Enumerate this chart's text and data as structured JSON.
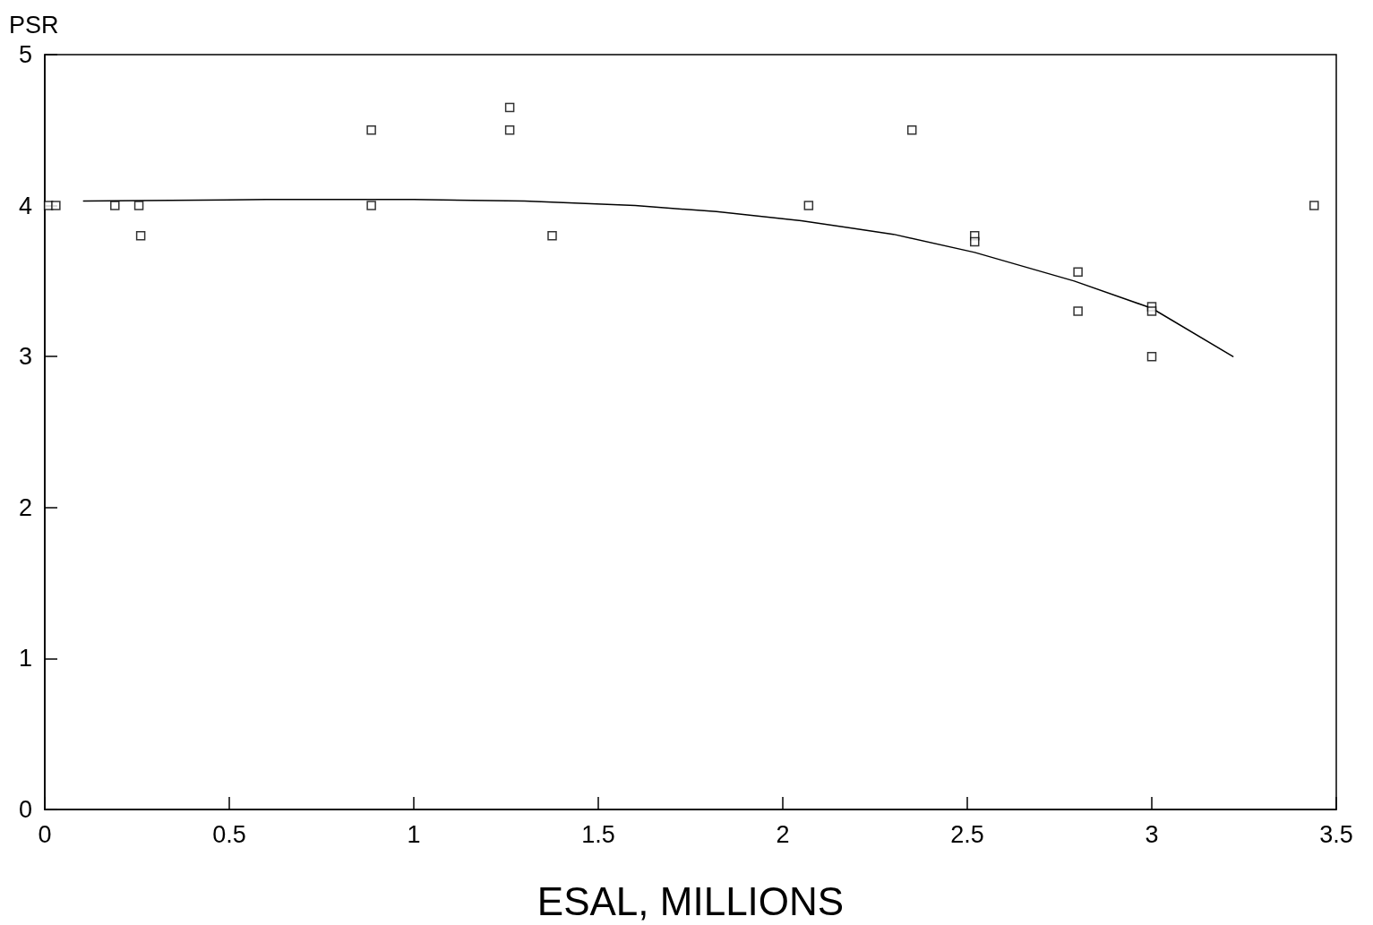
{
  "chart_data": {
    "type": "scatter",
    "xlabel": "ESAL, MILLIONS",
    "ylabel": "PSR",
    "xlim": [
      0,
      3.5
    ],
    "xticks": [
      0,
      0.5,
      1,
      1.5,
      2,
      2.5,
      3,
      3.5
    ],
    "ylim": [
      0,
      5
    ],
    "yticks": [
      0,
      1,
      2,
      3,
      4,
      5
    ],
    "grid": false,
    "series": [
      {
        "marker": "square",
        "color": "#000000",
        "x": [
          0.01,
          0.03,
          0.19,
          0.255,
          0.26,
          0.885,
          0.885,
          1.26,
          1.26,
          1.375,
          2.07,
          2.35,
          2.52,
          2.52,
          2.8,
          2.8,
          3.0,
          3.0,
          3.0,
          3.44
        ],
        "values": [
          4.0,
          4.0,
          4.0,
          4.0,
          3.8,
          4.5,
          4.0,
          4.65,
          4.5,
          3.8,
          4.0,
          4.5,
          3.8,
          3.76,
          3.56,
          3.3,
          3.33,
          3.3,
          3.0,
          4.0
        ]
      },
      {
        "type": "line",
        "marker": "none",
        "line_style": "solid",
        "color": "#000000",
        "x": [
          0.105,
          0.6,
          1.0,
          1.3,
          1.6,
          1.82,
          2.05,
          2.3,
          2.52,
          2.79,
          3.0,
          3.22
        ],
        "values": [
          4.03,
          4.04,
          4.04,
          4.03,
          4.0,
          3.96,
          3.9,
          3.81,
          3.69,
          3.5,
          3.32,
          3.0
        ]
      }
    ]
  }
}
